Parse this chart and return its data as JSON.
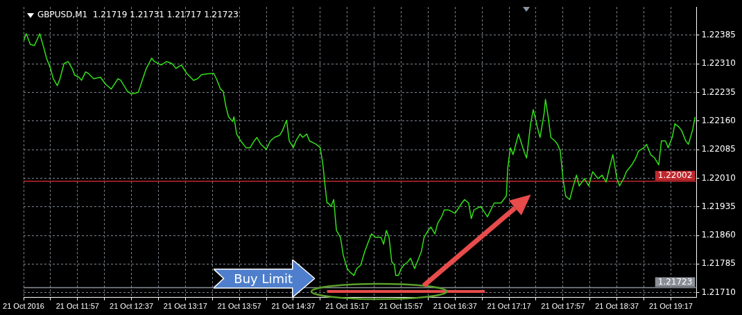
{
  "chart_data": {
    "type": "line",
    "title": "GBPUSD,M1  1.21719 1.21731 1.21717 1.21723",
    "series": [
      {
        "type": "line",
        "color": "#33e01a",
        "x": [
          "2016-10-21T11:17",
          "2016-10-21T11:19",
          "2016-10-21T11:22",
          "2016-10-21T11:25",
          "2016-10-21T11:29",
          "2016-10-21T11:32",
          "2016-10-21T11:34",
          "2016-10-21T11:37",
          "2016-10-21T11:39",
          "2016-10-21T11:42",
          "2016-10-21T11:44",
          "2016-10-21T11:47",
          "2016-10-21T11:50",
          "2016-10-21T11:53",
          "2016-10-21T11:55",
          "2016-10-21T11:58",
          "2016-10-21T12:00",
          "2016-10-21T12:03",
          "2016-10-21T12:05",
          "2016-10-21T12:09",
          "2016-10-21T12:14",
          "2016-10-21T12:18",
          "2016-10-21T12:22",
          "2016-10-21T12:27",
          "2016-10-21T12:29",
          "2016-10-21T12:34",
          "2016-10-21T12:37",
          "2016-10-21T12:42",
          "2016-10-21T12:44",
          "2016-10-21T12:48",
          "2016-10-21T12:52",
          "2016-10-21T12:54",
          "2016-10-21T12:59",
          "2016-10-21T13:03",
          "2016-10-21T13:07",
          "2016-10-21T13:10",
          "2016-10-21T13:14",
          "2016-10-21T13:18",
          "2016-10-21T13:23",
          "2016-10-21T13:26",
          "2016-10-21T13:29",
          "2016-10-21T13:34",
          "2016-10-21T13:38",
          "2016-10-21T13:40",
          "2016-10-21T13:43",
          "2016-10-21T13:45",
          "2016-10-21T13:47",
          "2016-10-21T13:49",
          "2016-10-21T13:52",
          "2016-10-21T13:53",
          "2016-10-21T13:55",
          "2016-10-21T13:58",
          "2016-10-21T14:02",
          "2016-10-21T14:05",
          "2016-10-21T14:08",
          "2016-10-21T14:10",
          "2016-10-21T14:13",
          "2016-10-21T14:17",
          "2016-10-21T14:20",
          "2016-10-21T14:23",
          "2016-10-21T14:27",
          "2016-10-21T14:29",
          "2016-10-21T14:32",
          "2016-10-21T14:34",
          "2016-10-21T14:37",
          "2016-10-21T14:39",
          "2016-10-21T14:42",
          "2016-10-21T14:44",
          "2016-10-21T14:47",
          "2016-10-21T14:49",
          "2016-10-21T14:54",
          "2016-10-21T14:57",
          "2016-10-21T14:59",
          "2016-10-21T15:00",
          "2016-10-21T15:02",
          "2016-10-21T15:03",
          "2016-10-21T15:05",
          "2016-10-21T15:07",
          "2016-10-21T15:09",
          "2016-10-21T15:12",
          "2016-10-21T15:14",
          "2016-10-21T15:17",
          "2016-10-21T15:19",
          "2016-10-21T15:22",
          "2016-10-21T15:24",
          "2016-10-21T15:27",
          "2016-10-21T15:30",
          "2016-10-21T15:33",
          "2016-10-21T15:35",
          "2016-10-21T15:38",
          "2016-10-21T15:42",
          "2016-10-21T15:44",
          "2016-10-21T15:46",
          "2016-10-21T15:48",
          "2016-10-21T15:50",
          "2016-10-21T15:52",
          "2016-10-21T15:53",
          "2016-10-21T15:55",
          "2016-10-21T15:57",
          "2016-10-21T15:59",
          "2016-10-21T16:02",
          "2016-10-21T16:04",
          "2016-10-21T16:07",
          "2016-10-21T16:09",
          "2016-10-21T16:12",
          "2016-10-21T16:14",
          "2016-10-21T16:17",
          "2016-10-21T16:19",
          "2016-10-21T16:22",
          "2016-10-21T16:24",
          "2016-10-21T16:27",
          "2016-10-21T16:29",
          "2016-10-21T16:32",
          "2016-10-21T16:37",
          "2016-10-21T16:42",
          "2016-10-21T16:44",
          "2016-10-21T16:47",
          "2016-10-21T16:49",
          "2016-10-21T16:51",
          "2016-10-21T16:56",
          "2016-10-21T17:01",
          "2016-10-21T17:06",
          "2016-10-21T17:11",
          "2016-10-21T17:15",
          "2016-10-21T17:16",
          "2016-10-21T17:18",
          "2016-10-21T17:20",
          "2016-10-21T17:24",
          "2016-10-21T17:28",
          "2016-10-21T17:30",
          "2016-10-21T17:33",
          "2016-10-21T17:35",
          "2016-10-21T17:38",
          "2016-10-21T17:40",
          "2016-10-21T17:43",
          "2016-10-21T17:44",
          "2016-10-21T17:46",
          "2016-10-21T17:48",
          "2016-10-21T17:51",
          "2016-10-21T17:53",
          "2016-10-21T17:55",
          "2016-10-21T17:57",
          "2016-10-21T17:59",
          "2016-10-21T18:02",
          "2016-10-21T18:04",
          "2016-10-21T18:07",
          "2016-10-21T18:09",
          "2016-10-21T18:13",
          "2016-10-21T18:16",
          "2016-10-21T18:19",
          "2016-10-21T18:23",
          "2016-10-21T18:26",
          "2016-10-21T18:29",
          "2016-10-21T18:32",
          "2016-10-21T18:34",
          "2016-10-21T18:37",
          "2016-10-21T18:39",
          "2016-10-21T18:42",
          "2016-10-21T18:44",
          "2016-10-21T18:48",
          "2016-10-21T18:51",
          "2016-10-21T18:53",
          "2016-10-21T18:57",
          "2016-10-21T18:59",
          "2016-10-21T19:02",
          "2016-10-21T19:05",
          "2016-10-21T19:08",
          "2016-10-21T19:10",
          "2016-10-21T19:13",
          "2016-10-21T19:15",
          "2016-10-21T19:18",
          "2016-10-21T19:20",
          "2016-10-21T19:23",
          "2016-10-21T19:25",
          "2016-10-21T19:28",
          "2016-10-21T19:30",
          "2016-10-21T19:33",
          "2016-10-21T19:35"
        ],
        "values": [
          1.2237,
          1.22389,
          1.22361,
          1.22358,
          1.22389,
          1.22352,
          1.22325,
          1.22298,
          1.22271,
          1.22253,
          1.22271,
          1.22311,
          1.22316,
          1.22298,
          1.2228,
          1.22275,
          1.22267,
          1.22289,
          1.22285,
          1.22271,
          1.22275,
          1.22256,
          1.22244,
          1.22271,
          1.22267,
          1.22238,
          1.22231,
          1.22235,
          1.22256,
          1.22298,
          1.22325,
          1.22316,
          1.22307,
          1.22316,
          1.22311,
          1.22298,
          1.22307,
          1.22285,
          1.22267,
          1.22271,
          1.22282,
          1.22284,
          1.22285,
          1.22271,
          1.22244,
          1.22238,
          1.22199,
          1.22171,
          1.22159,
          1.22171,
          1.22126,
          1.22108,
          1.2209,
          1.2209,
          1.22108,
          1.22117,
          1.22099,
          1.22086,
          1.22108,
          1.22117,
          1.22123,
          1.22135,
          1.22162,
          1.22108,
          1.2209,
          1.22108,
          1.22126,
          1.22117,
          1.22126,
          1.22108,
          1.22099,
          1.2209,
          1.22045,
          1.22009,
          1.21945,
          1.21945,
          1.21936,
          1.21954,
          1.21873,
          1.21855,
          1.21809,
          1.21773,
          1.21764,
          1.21755,
          1.21773,
          1.21782,
          1.21818,
          1.21846,
          1.21864,
          1.21855,
          1.21855,
          1.21837,
          1.21873,
          1.21855,
          1.21791,
          1.21782,
          1.21755,
          1.21755,
          1.21773,
          1.21782,
          1.21791,
          1.218,
          1.21773,
          1.21791,
          1.21818,
          1.21855,
          1.21873,
          1.21882,
          1.21864,
          1.21891,
          1.21909,
          1.21927,
          1.21927,
          1.21918,
          1.21945,
          1.21954,
          1.21945,
          1.21904,
          1.21927,
          1.21936,
          1.21909,
          1.21945,
          1.21945,
          1.21963,
          1.22036,
          1.2209,
          1.22072,
          1.22126,
          1.22081,
          1.22063,
          1.22153,
          1.2219,
          1.22144,
          1.22117,
          1.2218,
          1.22217,
          1.22171,
          1.22117,
          1.22108,
          1.22099,
          1.22081,
          1.22009,
          1.21963,
          1.21954,
          1.21981,
          1.22018,
          1.2199,
          1.22009,
          1.2199,
          1.22027,
          1.22009,
          1.22018,
          1.22,
          1.22045,
          1.22072,
          1.22009,
          1.2199,
          1.22009,
          1.22027,
          1.22045,
          1.22063,
          1.22081,
          1.2209,
          1.22099,
          1.22072,
          1.22063,
          1.22045,
          1.22108,
          1.22108,
          1.2209,
          1.22117,
          1.22153,
          1.22144,
          1.22135,
          1.22108,
          1.22099,
          1.22135,
          1.22171
        ]
      },
      {
        "type": "line",
        "color": "#e84b4b",
        "x": [
          "2016-10-21T15:02",
          "2016-10-21T16:59"
        ],
        "values": [
          1.21713,
          1.21713
        ]
      }
    ],
    "marker": "none",
    "line_style": "solid",
    "grid": true,
    "xlim": [
      "2016-10-21T11:17",
      "2016-10-21T19:36"
    ],
    "xticks": [
      {
        "value": "2016-10-21T11:17",
        "label": "21 Oct 2016"
      },
      {
        "value": "2016-10-21T11:37",
        "label": null
      },
      {
        "value": "2016-10-21T11:57",
        "label": "21 Oct 11:57"
      },
      {
        "value": "2016-10-21T12:17",
        "label": null
      },
      {
        "value": "2016-10-21T12:37",
        "label": "21 Oct 12:37"
      },
      {
        "value": "2016-10-21T12:57",
        "label": null
      },
      {
        "value": "2016-10-21T13:17",
        "label": "21 Oct 13:17"
      },
      {
        "value": "2016-10-21T13:37",
        "label": null
      },
      {
        "value": "2016-10-21T13:57",
        "label": "21 Oct 13:57"
      },
      {
        "value": "2016-10-21T14:17",
        "label": null
      },
      {
        "value": "2016-10-21T14:37",
        "label": "21 Oct 14:37"
      },
      {
        "value": "2016-10-21T14:57",
        "label": null
      },
      {
        "value": "2016-10-21T15:17",
        "label": "21 Oct 15:17"
      },
      {
        "value": "2016-10-21T15:37",
        "label": null
      },
      {
        "value": "2016-10-21T15:57",
        "label": "21 Oct 15:57"
      },
      {
        "value": "2016-10-21T16:17",
        "label": null
      },
      {
        "value": "2016-10-21T16:37",
        "label": "21 Oct 16:37"
      },
      {
        "value": "2016-10-21T16:57",
        "label": null
      },
      {
        "value": "2016-10-21T17:17",
        "label": "21 Oct 17:17"
      },
      {
        "value": "2016-10-21T17:37",
        "label": null
      },
      {
        "value": "2016-10-21T17:57",
        "label": "21 Oct 17:57"
      },
      {
        "value": "2016-10-21T18:17",
        "label": null
      },
      {
        "value": "2016-10-21T18:37",
        "label": "21 Oct 18:37"
      },
      {
        "value": "2016-10-21T18:57",
        "label": null
      },
      {
        "value": "2016-10-21T19:17",
        "label": "21 Oct 19:17"
      }
    ],
    "ylim": [
      1.21697,
      1.22459
    ],
    "yticks": [
      {
        "value": 1.2171,
        "label": "1.21710"
      },
      1.21785,
      {
        "value": 1.2186,
        "label": "1.21860"
      },
      1.21935,
      {
        "value": 1.2201,
        "label": "1.22010"
      },
      1.22085,
      {
        "value": 1.2216,
        "label": "1.22160"
      },
      1.22235,
      {
        "value": 1.2231,
        "label": "1.22310"
      },
      1.22385
    ],
    "ref_lines": [
      {
        "axis": "y",
        "value": 1.22002,
        "label": "1.22002",
        "color": "#c0282d"
      },
      {
        "axis": "y",
        "value": 1.21723,
        "label": "1.21723",
        "color": "#8a8f96"
      }
    ],
    "annotations": [
      "Buy Limit"
    ]
  }
}
